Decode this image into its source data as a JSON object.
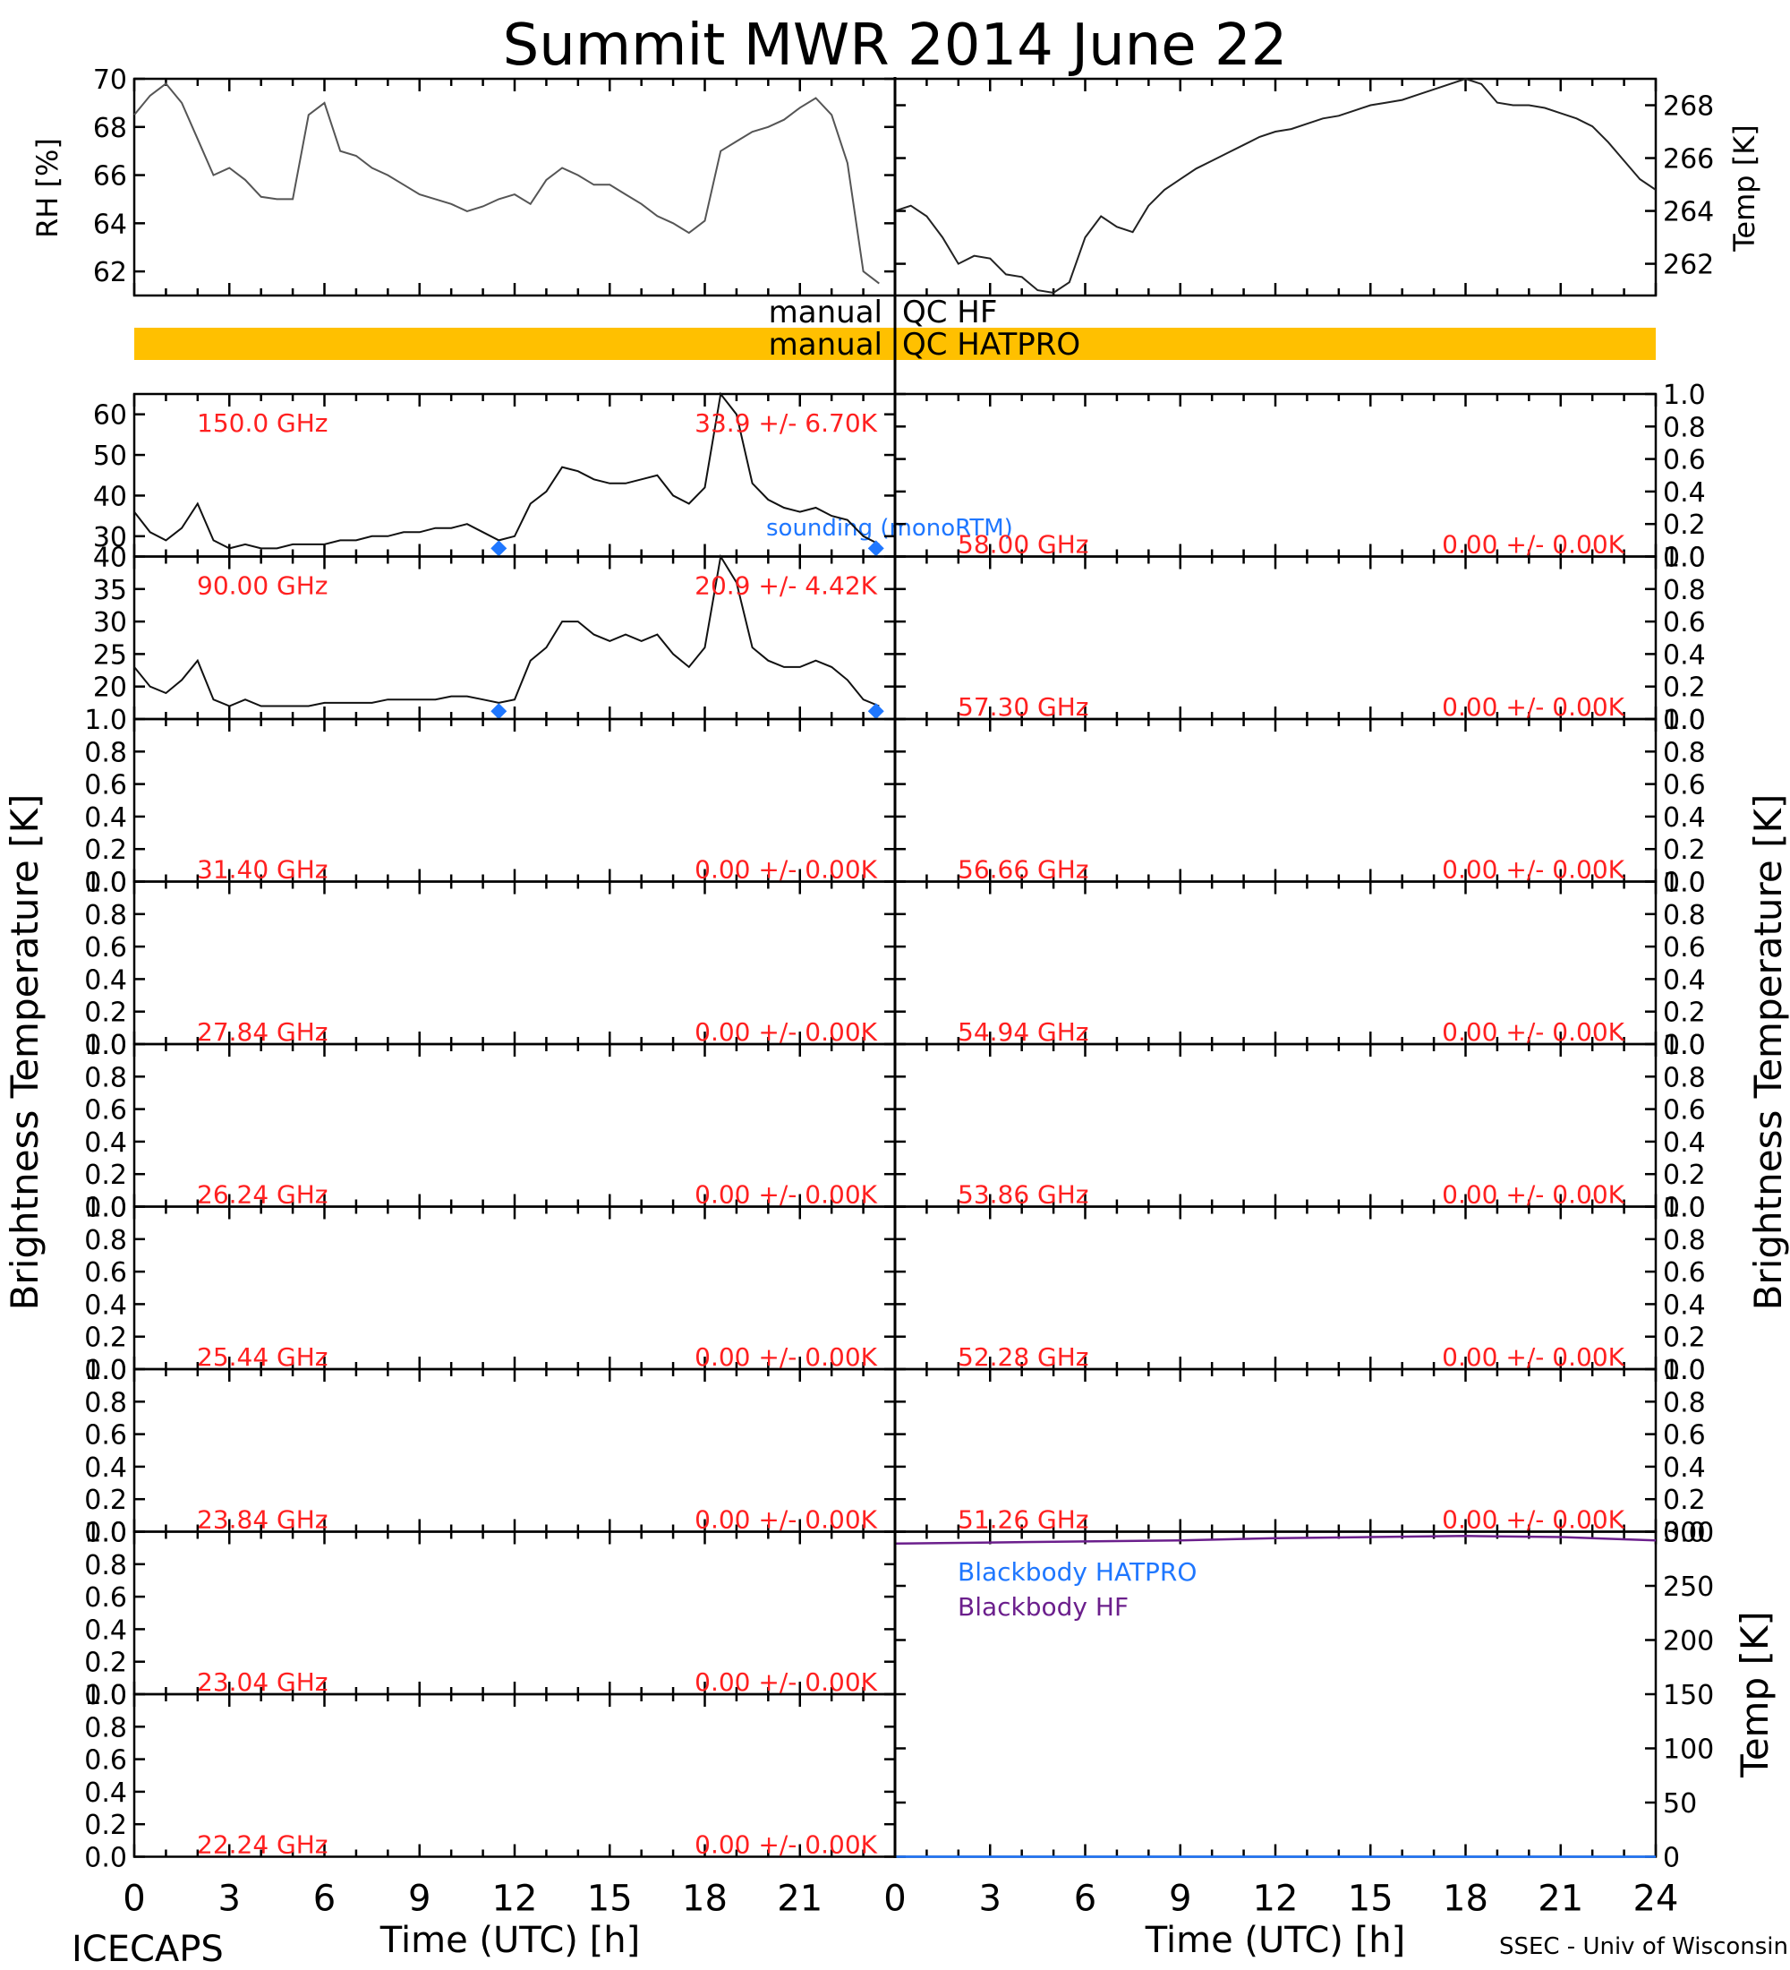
{
  "title": "Summit MWR 2014 June 22",
  "footer": {
    "left": "ICECAPS",
    "right": "SSEC - Univ of Wisconsin",
    "xlabel": "Time (UTC) [h]"
  },
  "colors": {
    "qc_bar": "#ffc000",
    "red_label": "#ff2020",
    "sounding": "#1f77ff",
    "blackbody_hatpro": "#1f77ff",
    "blackbody_hf": "#6b1f8c"
  },
  "qc_labels": {
    "hf": [
      "manual",
      "QC HF"
    ],
    "hatpro": [
      "manual",
      "QC HATPRO"
    ]
  },
  "left_axis_label": "Brightness Temperature [K]",
  "right_axis_label": "Brightness Temperature [K]",
  "legend": {
    "sounding": "sounding (monoRTM)",
    "bb_hatpro": "Blackbody HATPRO",
    "bb_hf": "Blackbody HF"
  },
  "chart_data": [
    {
      "id": "rh",
      "type": "line",
      "ylabel": "RH [%]",
      "xlim": [
        0,
        24
      ],
      "ylim": [
        61,
        70
      ],
      "yticks": [
        62,
        64,
        66,
        68,
        70
      ],
      "x": [
        0,
        0.5,
        1,
        1.5,
        2,
        2.5,
        3,
        3.5,
        4,
        4.5,
        5,
        5.5,
        6,
        6.5,
        7,
        7.5,
        8,
        8.5,
        9,
        9.5,
        10,
        10.5,
        11,
        11.5,
        12,
        12.5,
        13,
        13.5,
        14,
        14.5,
        15,
        15.5,
        16,
        16.5,
        17,
        17.5,
        18,
        18.5,
        19,
        19.5,
        20,
        20.5,
        21,
        21.5,
        22,
        22.5,
        23,
        23.5
      ],
      "y": [
        68.5,
        69.3,
        69.8,
        69.0,
        67.5,
        66.0,
        66.3,
        65.8,
        65.1,
        65.0,
        65.0,
        68.5,
        69.0,
        67.0,
        66.8,
        66.3,
        66.0,
        65.6,
        65.2,
        65.0,
        64.8,
        64.5,
        64.7,
        65.0,
        65.2,
        64.8,
        65.8,
        66.3,
        66.0,
        65.6,
        65.6,
        65.2,
        64.8,
        64.3,
        64.0,
        63.6,
        64.1,
        67.0,
        67.4,
        67.8,
        68.0,
        68.3,
        68.8,
        69.2,
        68.5,
        66.5,
        62.0,
        61.5
      ]
    },
    {
      "id": "temp",
      "type": "line",
      "ylabel": "Temp [K]",
      "xlim": [
        0,
        24
      ],
      "ylim": [
        260.8,
        269.0
      ],
      "yticks": [
        262,
        264,
        266,
        268
      ],
      "x": [
        0,
        0.5,
        1,
        1.5,
        2,
        2.5,
        3,
        3.5,
        4,
        4.5,
        5,
        5.5,
        6,
        6.5,
        7,
        7.5,
        8,
        8.5,
        9,
        9.5,
        10,
        10.5,
        11,
        11.5,
        12,
        12.5,
        13,
        13.5,
        14,
        14.5,
        15,
        15.5,
        16,
        16.5,
        17,
        17.5,
        18,
        18.5,
        19,
        19.5,
        20,
        20.5,
        21,
        21.5,
        22,
        22.5,
        23,
        23.5,
        24
      ],
      "y": [
        264.0,
        264.2,
        263.8,
        263.0,
        262.0,
        262.3,
        262.2,
        261.6,
        261.5,
        261.0,
        260.9,
        261.3,
        263.0,
        263.8,
        263.4,
        263.2,
        264.2,
        264.8,
        265.2,
        265.6,
        265.9,
        266.2,
        266.5,
        266.8,
        267.0,
        267.1,
        267.3,
        267.5,
        267.6,
        267.8,
        268.0,
        268.1,
        268.2,
        268.4,
        268.6,
        268.8,
        269.0,
        268.8,
        268.1,
        268.0,
        268.0,
        267.9,
        267.7,
        267.5,
        267.2,
        266.6,
        265.9,
        265.2,
        264.8
      ]
    },
    {
      "id": "tb150",
      "type": "line",
      "side": "left",
      "freq_label": "150.0 GHz",
      "stats_label": "33.9 +/- 6.70K",
      "xlim": [
        0,
        24
      ],
      "ylim": [
        25,
        65
      ],
      "yticks": [
        30,
        40,
        50,
        60
      ],
      "x": [
        0,
        0.5,
        1,
        1.5,
        2,
        2.5,
        3,
        3.5,
        4,
        4.5,
        5,
        5.5,
        6,
        6.5,
        7,
        7.5,
        8,
        8.5,
        9,
        9.5,
        10,
        10.5,
        11,
        11.5,
        12,
        12.5,
        13,
        13.5,
        14,
        14.5,
        15,
        15.5,
        16,
        16.5,
        17,
        17.5,
        18,
        18.5,
        19,
        19.5,
        20,
        20.5,
        21,
        21.5,
        22,
        22.5,
        23,
        23.5
      ],
      "y": [
        36,
        31,
        29,
        32,
        38,
        29,
        27,
        28,
        27,
        27,
        28,
        28,
        28,
        29,
        29,
        30,
        30,
        31,
        31,
        32,
        32,
        33,
        31,
        29,
        30,
        38,
        41,
        47,
        46,
        44,
        43,
        43,
        44,
        45,
        40,
        38,
        42,
        65,
        60,
        43,
        39,
        37,
        36,
        37,
        35,
        34,
        30,
        28
      ],
      "sounding": {
        "x": [
          11.5,
          23.4
        ],
        "y": [
          27,
          27
        ]
      }
    },
    {
      "id": "tb90",
      "type": "line",
      "side": "left",
      "freq_label": "90.00 GHz",
      "stats_label": "20.9 +/- 4.42K",
      "xlim": [
        0,
        24
      ],
      "ylim": [
        15,
        40
      ],
      "yticks": [
        20,
        25,
        30,
        35,
        40
      ],
      "x": [
        0,
        0.5,
        1,
        1.5,
        2,
        2.5,
        3,
        3.5,
        4,
        4.5,
        5,
        5.5,
        6,
        6.5,
        7,
        7.5,
        8,
        8.5,
        9,
        9.5,
        10,
        10.5,
        11,
        11.5,
        12,
        12.5,
        13,
        13.5,
        14,
        14.5,
        15,
        15.5,
        16,
        16.5,
        17,
        17.5,
        18,
        18.5,
        19,
        19.5,
        20,
        20.5,
        21,
        21.5,
        22,
        22.5,
        23,
        23.5
      ],
      "y": [
        23,
        20,
        19,
        21,
        24,
        18,
        17,
        18,
        17,
        17,
        17,
        17,
        17.5,
        17.5,
        17.5,
        17.5,
        18,
        18,
        18,
        18,
        18.5,
        18.5,
        18,
        17.5,
        18,
        24,
        26,
        30,
        30,
        28,
        27,
        28,
        27,
        28,
        25,
        23,
        26,
        40,
        36,
        26,
        24,
        23,
        23,
        24,
        23,
        21,
        18,
        17
      ],
      "sounding": {
        "x": [
          11.5,
          23.4
        ],
        "y": [
          16.2,
          16.2
        ]
      }
    },
    {
      "id": "tb3140",
      "type": "line",
      "side": "left",
      "freq_label": "31.40 GHz",
      "stats_label": "0.00 +/- 0.00K",
      "ylim": [
        0,
        1
      ],
      "yticks": [
        0.0,
        0.2,
        0.4,
        0.6,
        0.8,
        1.0
      ],
      "x": [],
      "y": []
    },
    {
      "id": "tb2784",
      "type": "line",
      "side": "left",
      "freq_label": "27.84 GHz",
      "stats_label": "0.00 +/- 0.00K",
      "ylim": [
        0,
        1
      ],
      "yticks": [
        0.0,
        0.2,
        0.4,
        0.6,
        0.8,
        1.0
      ],
      "x": [],
      "y": []
    },
    {
      "id": "tb2624",
      "type": "line",
      "side": "left",
      "freq_label": "26.24 GHz",
      "stats_label": "0.00 +/- 0.00K",
      "ylim": [
        0,
        1
      ],
      "yticks": [
        0.0,
        0.2,
        0.4,
        0.6,
        0.8,
        1.0
      ],
      "x": [],
      "y": []
    },
    {
      "id": "tb2544",
      "type": "line",
      "side": "left",
      "freq_label": "25.44 GHz",
      "stats_label": "0.00 +/- 0.00K",
      "ylim": [
        0,
        1
      ],
      "yticks": [
        0.0,
        0.2,
        0.4,
        0.6,
        0.8,
        1.0
      ],
      "x": [],
      "y": []
    },
    {
      "id": "tb2384",
      "type": "line",
      "side": "left",
      "freq_label": "23.84 GHz",
      "stats_label": "0.00 +/- 0.00K",
      "ylim": [
        0,
        1
      ],
      "yticks": [
        0.0,
        0.2,
        0.4,
        0.6,
        0.8,
        1.0
      ],
      "x": [],
      "y": []
    },
    {
      "id": "tb2304",
      "type": "line",
      "side": "left",
      "freq_label": "23.04 GHz",
      "stats_label": "0.00 +/- 0.00K",
      "ylim": [
        0,
        1
      ],
      "yticks": [
        0.0,
        0.2,
        0.4,
        0.6,
        0.8,
        1.0
      ],
      "x": [],
      "y": []
    },
    {
      "id": "tb2224",
      "type": "line",
      "side": "left",
      "freq_label": "22.24 GHz",
      "stats_label": "0.00 +/- 0.00K",
      "ylim": [
        0,
        1
      ],
      "yticks": [
        0.0,
        0.2,
        0.4,
        0.6,
        0.8,
        1.0
      ],
      "x": [],
      "y": []
    },
    {
      "id": "tb5800",
      "type": "line",
      "side": "right",
      "freq_label": "58.00 GHz",
      "stats_label": "0.00 +/- 0.00K",
      "ylim": [
        0,
        1
      ],
      "yticks": [
        0.0,
        0.2,
        0.4,
        0.6,
        0.8,
        1.0
      ],
      "x": [],
      "y": []
    },
    {
      "id": "tb5730",
      "type": "line",
      "side": "right",
      "freq_label": "57.30 GHz",
      "stats_label": "0.00 +/- 0.00K",
      "ylim": [
        0,
        1
      ],
      "yticks": [
        0.0,
        0.2,
        0.4,
        0.6,
        0.8,
        1.0
      ],
      "x": [],
      "y": []
    },
    {
      "id": "tb5666",
      "type": "line",
      "side": "right",
      "freq_label": "56.66 GHz",
      "stats_label": "0.00 +/- 0.00K",
      "ylim": [
        0,
        1
      ],
      "yticks": [
        0.0,
        0.2,
        0.4,
        0.6,
        0.8,
        1.0
      ],
      "x": [],
      "y": []
    },
    {
      "id": "tb5494",
      "type": "line",
      "side": "right",
      "freq_label": "54.94 GHz",
      "stats_label": "0.00 +/- 0.00K",
      "ylim": [
        0,
        1
      ],
      "yticks": [
        0.0,
        0.2,
        0.4,
        0.6,
        0.8,
        1.0
      ],
      "x": [],
      "y": []
    },
    {
      "id": "tb5386",
      "type": "line",
      "side": "right",
      "freq_label": "53.86 GHz",
      "stats_label": "0.00 +/- 0.00K",
      "ylim": [
        0,
        1
      ],
      "yticks": [
        0.0,
        0.2,
        0.4,
        0.6,
        0.8,
        1.0
      ],
      "x": [],
      "y": []
    },
    {
      "id": "tb5228",
      "type": "line",
      "side": "right",
      "freq_label": "52.28 GHz",
      "stats_label": "0.00 +/- 0.00K",
      "ylim": [
        0,
        1
      ],
      "yticks": [
        0.0,
        0.2,
        0.4,
        0.6,
        0.8,
        1.0
      ],
      "x": [],
      "y": []
    },
    {
      "id": "tb5126",
      "type": "line",
      "side": "right",
      "freq_label": "51.26 GHz",
      "stats_label": "0.00 +/- 0.00K",
      "ylim": [
        0,
        1
      ],
      "yticks": [
        0.0,
        0.2,
        0.4,
        0.6,
        0.8,
        1.0
      ],
      "x": [],
      "y": []
    },
    {
      "id": "blackbody",
      "type": "line",
      "ylabel": "Temp [K]",
      "xlim": [
        0,
        24
      ],
      "ylim": [
        0,
        300
      ],
      "yticks": [
        0,
        50,
        100,
        150,
        200,
        250,
        300
      ],
      "series": [
        {
          "name": "Blackbody HATPRO",
          "x": [
            0,
            24
          ],
          "y": [
            0,
            0
          ]
        },
        {
          "name": "Blackbody HF",
          "x": [
            0,
            3,
            6,
            9,
            12,
            15,
            18,
            21,
            24
          ],
          "y": [
            289,
            290,
            291,
            292,
            294,
            295,
            296,
            295,
            292
          ]
        }
      ]
    }
  ],
  "x_ticks": [
    "0",
    "3",
    "6",
    "9",
    "12",
    "15",
    "18",
    "21"
  ],
  "x_ticks_right": [
    "0",
    "3",
    "6",
    "9",
    "12",
    "15",
    "18",
    "21",
    "24"
  ]
}
